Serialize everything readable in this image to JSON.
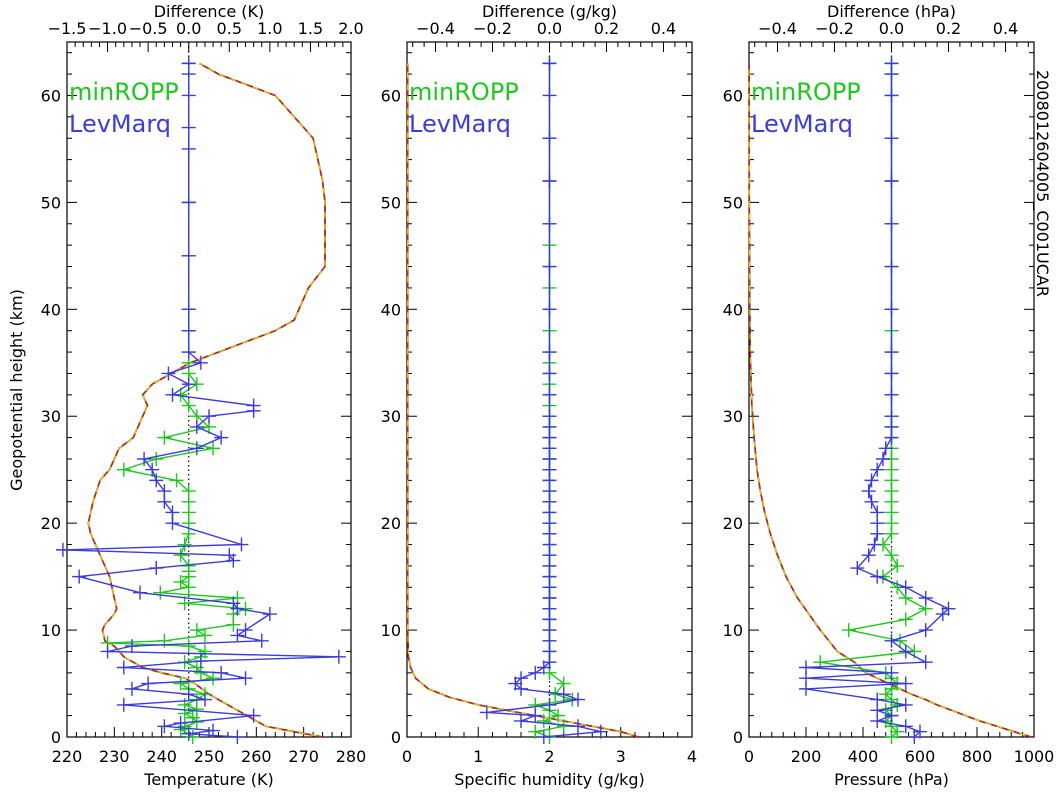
{
  "side_label": "2008012604005_C001UCAR",
  "ylabel": "Geopotential height (km)",
  "chart_data": [
    {
      "type": "line",
      "xlabel": "Temperature (K)",
      "top_xlabel": "Difference (K)",
      "xlim": [
        220,
        280
      ],
      "top_xlim": [
        -1.5,
        2.0
      ],
      "ylim": [
        0,
        65
      ],
      "xticks": [
        "220",
        "230",
        "240",
        "250",
        "260",
        "270",
        "280"
      ],
      "top_ticks": [
        "−1.5",
        "−1.0",
        "−0.5",
        "0.0",
        "0.5",
        "1.0",
        "1.5",
        "2.0"
      ],
      "yticks": [
        "0",
        "10",
        "20",
        "30",
        "40",
        "50",
        "60"
      ],
      "legend": [
        {
          "name": "minROPP",
          "color": "#1ec81e"
        },
        {
          "name": "LevMarq",
          "color": "#3c3cdc"
        }
      ],
      "profile": {
        "x": [
          274,
          268,
          262,
          258,
          254,
          250,
          247,
          245,
          240,
          236,
          234,
          232,
          231,
          230,
          228,
          227.5,
          228,
          229,
          230,
          230.5,
          230,
          229.5,
          229,
          228,
          227,
          226,
          225,
          224.5,
          225.5,
          227,
          229,
          230,
          231,
          234,
          236,
          237,
          236,
          238,
          242,
          246,
          252,
          258,
          264,
          268,
          271,
          274.5,
          274.5,
          274,
          273,
          272,
          270,
          268,
          264,
          258,
          252,
          248
        ],
        "y": [
          0,
          0.5,
          1,
          2,
          3,
          4,
          5,
          5.5,
          6,
          6.5,
          7,
          7.5,
          8,
          8.5,
          9,
          10,
          10.5,
          11,
          11.5,
          12,
          13,
          14,
          15,
          16,
          17,
          18,
          19,
          20,
          22,
          24,
          25,
          26,
          27,
          28,
          30,
          31,
          32,
          33,
          34,
          35,
          36,
          37,
          38,
          39,
          42,
          44,
          50,
          52,
          54,
          56,
          57,
          58,
          60,
          61,
          62,
          63
        ]
      },
      "series": [
        {
          "name": "minROPP",
          "color": "#1ec81e",
          "x": [
            0.05,
            0.0,
            -0.1,
            -0.05,
            0.1,
            0.05,
            -0.05,
            0.1,
            -0.05,
            0.1,
            0.2,
            0.0,
            -0.1,
            0.3,
            0.15,
            0.1,
            -0.05,
            0.15,
            0.2,
            0.0,
            -1.0,
            -0.3,
            0.2,
            0.1,
            0.55,
            0.55,
            0.7,
            -0.05,
            0.6,
            -0.35,
            0.0,
            -0.1,
            0.0,
            0.0,
            0.0,
            -0.1,
            -0.05,
            0.0,
            0.0,
            0.0,
            0.0,
            0.0,
            -0.15,
            -0.8,
            -0.4,
            0.3,
            -0.3,
            0.25,
            0.1,
            0.0,
            -0.1,
            0.1,
            0.0,
            0.0,
            0.0,
            0.0,
            0.0,
            0.0,
            0.0,
            0.0
          ],
          "y": [
            0,
            0.3,
            0.7,
            1,
            1.4,
            1.8,
            2.2,
            2.6,
            3,
            3.5,
            4,
            4.5,
            5,
            5.5,
            6,
            6.5,
            7,
            7.5,
            8,
            8.5,
            8.8,
            9,
            9.5,
            10,
            10.5,
            11.5,
            12,
            12.5,
            13,
            13.5,
            14,
            14.5,
            15,
            15.5,
            16,
            17,
            18,
            19,
            20,
            21,
            22,
            23,
            24,
            25,
            26,
            27,
            28,
            29,
            30,
            31,
            32,
            33,
            34,
            35,
            36,
            38,
            40,
            45,
            50,
            63
          ]
        },
        {
          "name": "LevMarq",
          "color": "#3c3cdc",
          "x": [
            0.6,
            0.0,
            0.3,
            -0.3,
            -0.1,
            0.8,
            -0.8,
            0.2,
            0.0,
            -0.7,
            -0.5,
            0.7,
            0.4,
            -0.8,
            0.15,
            1.85,
            -1.0,
            -0.7,
            0.9,
            0.6,
            0.7,
            1.0,
            0.6,
            0.55,
            -0.6,
            -1.35,
            -0.4,
            0.55,
            0.5,
            -1.55,
            0.65,
            -0.2,
            -0.2,
            -0.3,
            -0.3,
            -0.4,
            -0.45,
            -0.55,
            0.1,
            0.4,
            0.1,
            0.25,
            0.8,
            0.8,
            -0.2,
            0.0,
            -0.25,
            0.15,
            0.0,
            0.0,
            0.0,
            0.0,
            0.0,
            0.0,
            0.0,
            0.0,
            0.0,
            0.0
          ],
          "y": [
            0,
            0.3,
            0.6,
            1,
            1.3,
            2,
            3,
            3.5,
            4,
            4.5,
            5,
            5.5,
            6,
            6.5,
            7.1,
            7.5,
            8,
            8.5,
            9,
            9.5,
            10,
            11.5,
            12,
            12.5,
            13.5,
            15,
            15.8,
            16.5,
            17,
            17.5,
            18,
            20,
            21,
            22,
            23,
            24,
            25,
            26,
            27,
            28,
            29,
            30,
            30.5,
            31,
            32,
            33,
            34,
            35,
            36,
            38,
            40,
            45,
            50,
            55,
            57,
            60,
            62,
            63
          ]
        }
      ]
    },
    {
      "type": "line",
      "xlabel": "Specific humidity (g/kg)",
      "top_xlabel": "Difference (g/kg)",
      "xlim": [
        0,
        4
      ],
      "top_xlim": [
        -0.5,
        0.5
      ],
      "ylim": [
        0,
        65
      ],
      "xticks": [
        "0",
        "1",
        "2",
        "3",
        "4"
      ],
      "top_ticks": [
        "−0.4",
        "−0.2",
        "0.0",
        "0.2",
        "0.4"
      ],
      "yticks": [
        "0",
        "10",
        "20",
        "30",
        "40",
        "50",
        "60"
      ],
      "legend": [
        {
          "name": "minROPP",
          "color": "#1ec81e"
        },
        {
          "name": "LevMarq",
          "color": "#3c3cdc"
        }
      ],
      "profile": {
        "x": [
          3.25,
          3.0,
          2.6,
          2.2,
          1.8,
          1.4,
          1.0,
          0.6,
          0.3,
          0.12,
          0.05,
          0.02,
          0.01,
          0.01,
          0.01,
          0.01
        ],
        "y": [
          0,
          0.5,
          1,
          1.5,
          2,
          2.5,
          3,
          3.7,
          4.5,
          5.5,
          6.5,
          7.5,
          10,
          20,
          40,
          63
        ]
      },
      "series": [
        {
          "name": "minROPP",
          "color": "#1ec81e",
          "x": [
            0.0,
            -0.05,
            0.05,
            -0.02,
            0.03,
            0.0,
            -0.05,
            0.08,
            0.02,
            0.05,
            0.0,
            0.0,
            0.0,
            0.0,
            0.0,
            0.0,
            0.0,
            0.0,
            0.0,
            0.0,
            0.0,
            0.0,
            0.0,
            0.0,
            0.0,
            0.0,
            0.0,
            0.0,
            0.0,
            0.0,
            0.0,
            0.0,
            0.0,
            0.0,
            0.0,
            0.0,
            0.0,
            0.0,
            0.0,
            0.0,
            0.0,
            0.0,
            0.0,
            0.0,
            0.0,
            0.0,
            0.0,
            0.0,
            0.0,
            0.0
          ],
          "y": [
            0,
            0.5,
            1,
            1.5,
            2,
            2.5,
            3,
            3.5,
            4,
            5,
            6,
            7,
            8,
            9,
            10,
            11,
            12,
            13,
            14,
            15,
            16,
            17,
            18,
            19,
            20,
            21,
            22,
            23,
            24,
            25,
            26,
            27,
            28,
            29,
            30,
            31,
            32,
            33,
            34,
            35,
            36,
            38,
            40,
            42,
            44,
            46,
            48,
            52,
            56,
            63
          ]
        },
        {
          "name": "LevMarq",
          "color": "#3c3cdc",
          "x": [
            -0.02,
            0.18,
            0.1,
            -0.1,
            -0.05,
            -0.22,
            0.0,
            0.1,
            0.05,
            -0.1,
            -0.12,
            -0.1,
            -0.05,
            -0.02,
            0.0,
            0.0,
            0.0,
            0.0,
            0.0,
            0.0,
            0.0,
            0.0,
            0.0,
            0.0,
            0.0,
            0.0,
            0.0,
            0.0,
            0.0,
            0.0,
            0.0,
            0.0,
            0.0,
            0.0,
            0.0,
            0.0,
            0.0,
            0.0,
            0.0,
            0.0,
            0.0,
            0.0,
            0.0,
            0.0,
            0.0,
            0.0,
            0.0,
            0.0
          ],
          "y": [
            0,
            0.5,
            1,
            1.5,
            2,
            2.3,
            3,
            3.5,
            4,
            4.5,
            5,
            5.5,
            6,
            6.5,
            7,
            8,
            9,
            10,
            11,
            12,
            13,
            14,
            15,
            16,
            17,
            18,
            19,
            20,
            21,
            22,
            23,
            24,
            25,
            26,
            27,
            28,
            29,
            30,
            32,
            34,
            36,
            40,
            44,
            48,
            52,
            56,
            60,
            63
          ]
        }
      ]
    },
    {
      "type": "line",
      "xlabel": "Pressure (hPa)",
      "top_xlabel": "Difference (hPa)",
      "xlim": [
        0,
        1000
      ],
      "top_xlim": [
        -0.5,
        0.5
      ],
      "ylim": [
        0,
        65
      ],
      "xticks": [
        "0",
        "200",
        "400",
        "600",
        "800",
        "1000"
      ],
      "top_ticks": [
        "−0.4",
        "−0.2",
        "0.0",
        "0.2",
        "0.4"
      ],
      "yticks": [
        "0",
        "10",
        "20",
        "30",
        "40",
        "50",
        "60"
      ],
      "legend": [
        {
          "name": "minROPP",
          "color": "#1ec81e"
        },
        {
          "name": "LevMarq",
          "color": "#3c3cdc"
        }
      ],
      "profile": {
        "x": [
          990,
          930,
          870,
          810,
          760,
          710,
          660,
          620,
          570,
          530,
          490,
          450,
          410,
          370,
          340,
          310,
          280,
          250,
          210,
          170,
          130,
          100,
          75,
          55,
          40,
          28,
          18,
          10,
          5,
          2,
          1,
          0.5
        ],
        "y": [
          0,
          0.5,
          1,
          1.5,
          2,
          2.5,
          3,
          3.5,
          4,
          4.5,
          5,
          5.5,
          6,
          7,
          7.5,
          8,
          9,
          10,
          11.5,
          13,
          15,
          17,
          19,
          21,
          23,
          25,
          28,
          31,
          35,
          42,
          50,
          63
        ]
      },
      "series": [
        {
          "name": "minROPP",
          "color": "#1ec81e",
          "x": [
            0.0,
            0.02,
            0.0,
            -0.02,
            0.0,
            -0.02,
            0.02,
            0.0,
            -0.02,
            0.0,
            0.02,
            0.0,
            -0.02,
            -0.25,
            0.08,
            0.03,
            -0.15,
            0.05,
            0.12,
            0.05,
            0.02,
            -0.03,
            0.02,
            0.0,
            -0.03,
            0.0,
            0.0,
            0.0,
            0.0,
            0.0,
            0.0,
            0.0,
            0.0,
            0.0,
            0.0,
            0.0,
            0.0,
            0.0,
            0.0,
            0.0,
            0.0,
            0.0,
            0.0,
            0.0,
            0.0,
            0.0,
            0.0,
            0.0,
            0.0
          ],
          "y": [
            0,
            0.5,
            1,
            1.5,
            2,
            2.5,
            3,
            3.5,
            4,
            4.5,
            5,
            5.5,
            6,
            7,
            8,
            9,
            10,
            11,
            12,
            13,
            14,
            15,
            16,
            17,
            18,
            19,
            20,
            21,
            22,
            23,
            24,
            25,
            26,
            27,
            28,
            29,
            30,
            32,
            34,
            36,
            38,
            40,
            44,
            48,
            52,
            56,
            60,
            62,
            63
          ]
        },
        {
          "name": "LevMarq",
          "color": "#3c3cdc",
          "x": [
            0.08,
            0.1,
            0.05,
            -0.05,
            0.0,
            -0.05,
            0.05,
            -0.05,
            -0.3,
            0.05,
            -0.3,
            0.0,
            -0.3,
            0.12,
            0.05,
            0.0,
            0.12,
            0.18,
            0.2,
            0.12,
            0.05,
            -0.05,
            -0.12,
            -0.08,
            -0.06,
            -0.05,
            -0.05,
            -0.05,
            -0.07,
            -0.08,
            -0.07,
            -0.05,
            -0.03,
            -0.02,
            0.0,
            0.0,
            0.0,
            0.0,
            0.0,
            0.0,
            0.0,
            0.0,
            0.0,
            0.0,
            0.0,
            0.0,
            0.0,
            0.0
          ],
          "y": [
            0,
            0.5,
            1,
            1.5,
            2,
            2.5,
            3,
            3.5,
            4.5,
            5,
            5.5,
            6,
            6.5,
            7,
            8,
            9,
            10,
            11.5,
            12,
            13,
            14,
            15,
            15.8,
            17,
            18,
            19,
            20,
            21,
            22,
            23,
            24,
            25,
            26,
            27,
            28,
            29,
            30,
            32,
            34,
            36,
            40,
            44,
            48,
            52,
            56,
            60,
            62,
            63
          ]
        }
      ]
    }
  ]
}
